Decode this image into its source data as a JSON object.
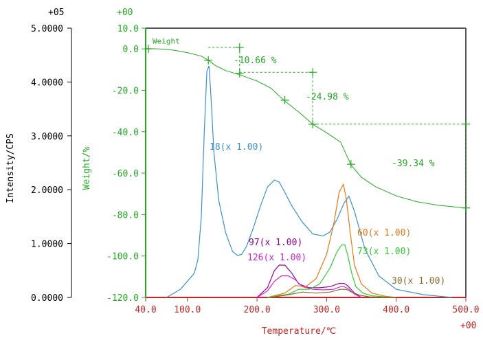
{
  "chart_data": {
    "type": "line",
    "xlabel": "Temperature/℃",
    "x_exponent": "+00",
    "x_ticks": [
      "40.0",
      "100.0",
      "200.0",
      "300.0",
      "400.0",
      "500.0"
    ],
    "xlim": [
      40,
      500
    ],
    "left_axis": {
      "label": "Intensity/CPS",
      "exponent": "+05",
      "ticks": [
        "0.0000",
        "1.0000",
        "2.0000",
        "3.0000",
        "4.0000",
        "5.0000"
      ],
      "lim": [
        0,
        5
      ]
    },
    "right_axis": {
      "label": "Weight/%",
      "exponent": "+00",
      "ticks": [
        "10.0",
        "0.0",
        "-20.0",
        "-40.0",
        "-60.0",
        "-80.0",
        "-100.0",
        "-120.0"
      ],
      "lim": [
        -120,
        10
      ]
    },
    "weight_series": {
      "name": "Weight",
      "color": "#22aa22",
      "axis": "right",
      "x": [
        40,
        60,
        80,
        100,
        120,
        130,
        140,
        155,
        175,
        200,
        220,
        240,
        260,
        280,
        300,
        320,
        335,
        350,
        370,
        400,
        430,
        460,
        480,
        500
      ],
      "y": [
        0.2,
        0,
        -0.6,
        -1.8,
        -3.5,
        -5.5,
        -8,
        -10.5,
        -12.5,
        -15.5,
        -19,
        -25.2,
        -30.5,
        -36.4,
        -40.5,
        -45,
        -56,
        -62,
        -66.5,
        -71,
        -73.8,
        -75.5,
        -76.2,
        -76.8
      ]
    },
    "weight_markers": {
      "x": [
        44,
        130,
        175,
        240,
        280,
        335,
        500
      ],
      "y": [
        0,
        -5.5,
        -11.8,
        -24.8,
        -36.4,
        -55.7,
        -76.8
      ]
    },
    "steps": [
      {
        "label": "-10.66 %",
        "x_from": 130,
        "x_to": 175,
        "y_from": 0.7,
        "y_to": -10.66
      },
      {
        "label": "-24.98 %",
        "x_from": 175,
        "x_to": 280,
        "y_from": -11.3,
        "y_to": -36.3
      },
      {
        "label": "-39.34 %",
        "x_from": 280,
        "x_to": 500,
        "y_from": -36.3,
        "y_to": -76.8
      }
    ],
    "series": [
      {
        "name": "18(x 1.00)",
        "color": "#3b8fd9",
        "axis": "left",
        "x": [
          70,
          90,
          110,
          115,
          120,
          124,
          128,
          131,
          134,
          138,
          145,
          155,
          165,
          172,
          178,
          185,
          195,
          205,
          215,
          225,
          232,
          240,
          250,
          265,
          280,
          295,
          305,
          315,
          325,
          332,
          340,
          355,
          375,
          400,
          440,
          480
        ],
        "y": [
          0,
          0.15,
          0.45,
          0.7,
          1.5,
          3.0,
          4.2,
          4.3,
          3.7,
          2.7,
          1.8,
          1.2,
          0.85,
          0.78,
          0.8,
          0.95,
          1.3,
          1.7,
          2.05,
          2.18,
          2.14,
          1.95,
          1.7,
          1.4,
          1.18,
          1.14,
          1.22,
          1.45,
          1.75,
          1.88,
          1.6,
          0.9,
          0.4,
          0.15,
          0.05,
          0
        ]
      },
      {
        "name": "97(x 1.00)",
        "color": "#990099",
        "axis": "left",
        "x": [
          200,
          215,
          225,
          232,
          240,
          250,
          260,
          275,
          290,
          305,
          318,
          325,
          330,
          340,
          350
        ],
        "y": [
          0,
          0.18,
          0.5,
          0.6,
          0.6,
          0.45,
          0.25,
          0.18,
          0.18,
          0.2,
          0.26,
          0.26,
          0.22,
          0.08,
          0
        ]
      },
      {
        "name": "126(x 1.00)",
        "color": "#dd22dd",
        "axis": "left",
        "x": [
          200,
          215,
          225,
          235,
          245,
          255,
          265,
          280,
          295,
          310,
          320,
          325,
          330,
          340,
          350
        ],
        "y": [
          0,
          0.12,
          0.3,
          0.4,
          0.4,
          0.33,
          0.2,
          0.15,
          0.14,
          0.15,
          0.2,
          0.2,
          0.17,
          0.06,
          0
        ]
      },
      {
        "name": "60(x 1.00)",
        "color": "#ee7711",
        "axis": "left",
        "x": [
          215,
          240,
          255,
          270,
          285,
          300,
          310,
          318,
          324,
          328,
          334,
          340,
          350,
          365,
          385,
          400
        ],
        "y": [
          0,
          0.08,
          0.22,
          0.2,
          0.35,
          0.8,
          1.35,
          1.95,
          2.1,
          1.85,
          1.2,
          0.6,
          0.25,
          0.08,
          0.02,
          0
        ]
      },
      {
        "name": "73(x 1.00)",
        "color": "#33cc33",
        "axis": "left",
        "x": [
          215,
          245,
          260,
          275,
          290,
          305,
          315,
          322,
          326,
          330,
          336,
          342,
          352,
          365,
          385,
          400
        ],
        "y": [
          0,
          0.06,
          0.15,
          0.15,
          0.25,
          0.55,
          0.85,
          0.98,
          0.98,
          0.8,
          0.45,
          0.2,
          0.08,
          0.03,
          0.01,
          0
        ]
      },
      {
        "name": "30(x 1.00)",
        "color": "#8a6a30",
        "axis": "left",
        "x": [
          220,
          245,
          265,
          285,
          305,
          320,
          328,
          336,
          348,
          362,
          380,
          400
        ],
        "y": [
          0,
          0.05,
          0.1,
          0.08,
          0.1,
          0.15,
          0.15,
          0.1,
          0.04,
          0.01,
          0,
          0
        ]
      }
    ],
    "series_label_positions": [
      "left-peak",
      "upper-left",
      "lower-left",
      "right",
      "right",
      "far-right"
    ],
    "grid": false
  }
}
